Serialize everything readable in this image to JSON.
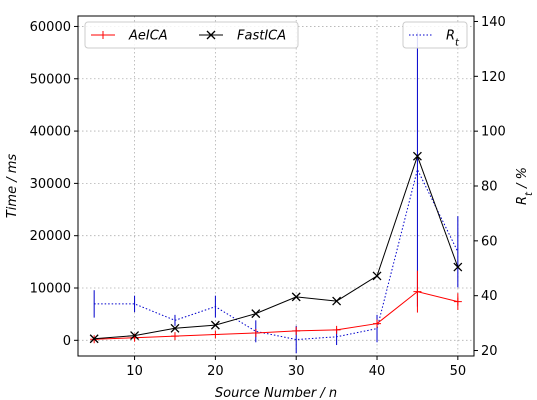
{
  "chart_data": {
    "type": "line",
    "x": [
      5,
      10,
      15,
      20,
      25,
      30,
      35,
      40,
      45,
      50
    ],
    "xlabel": "Source Number / n",
    "xlim": [
      3,
      52
    ],
    "xticks": [
      10,
      20,
      30,
      40,
      50
    ],
    "ylabel_left": "Time / ms",
    "ylim_left": [
      -3000,
      62000
    ],
    "yticks_left": [
      0,
      10000,
      20000,
      30000,
      40000,
      50000,
      60000
    ],
    "ylabel_right": "R_t / %",
    "ylim_right": [
      18,
      142
    ],
    "yticks_right": [
      20,
      40,
      60,
      80,
      100,
      120,
      140
    ],
    "grid": true,
    "series": [
      {
        "name": "AeICA",
        "axis": "left",
        "color": "#ff0000",
        "marker": "plus",
        "linestyle": "solid",
        "values": [
          200,
          500,
          800,
          1100,
          1400,
          1800,
          2000,
          3200,
          9300,
          7400
        ],
        "err_low": [
          0,
          0,
          0,
          0,
          0,
          0,
          0,
          0,
          4000,
          1600
        ],
        "err_high": [
          0,
          0,
          0,
          0,
          0,
          0,
          0,
          0,
          4000,
          1600
        ]
      },
      {
        "name": "FastICA",
        "axis": "left",
        "color": "#000000",
        "marker": "x",
        "linestyle": "solid",
        "values": [
          300,
          900,
          2300,
          2900,
          5100,
          8300,
          7500,
          12300,
          35200,
          14000
        ],
        "err_low": [
          0,
          0,
          0,
          0,
          0,
          0,
          0,
          0,
          0,
          0
        ],
        "err_high": [
          0,
          0,
          0,
          0,
          0,
          0,
          0,
          0,
          0,
          0
        ]
      },
      {
        "name": "R_t",
        "axis": "right",
        "color": "#0000cc",
        "marker": "none",
        "linestyle": "dotted",
        "values": [
          37,
          37,
          31,
          36,
          27,
          24,
          25,
          28,
          86,
          56
        ],
        "err_low": [
          5,
          3,
          2,
          4,
          4,
          5,
          3,
          5,
          50,
          13
        ],
        "err_high": [
          5,
          3,
          2,
          4,
          4,
          5,
          3,
          5,
          50,
          13
        ]
      }
    ],
    "legend_left": {
      "placement": "top-left",
      "entries": [
        {
          "label": "AeICA",
          "series": 0
        },
        {
          "label": "FastICA",
          "series": 1
        }
      ]
    },
    "legend_right": {
      "placement": "top-right",
      "entries": [
        {
          "label": "R_t",
          "series": 2
        }
      ]
    }
  }
}
